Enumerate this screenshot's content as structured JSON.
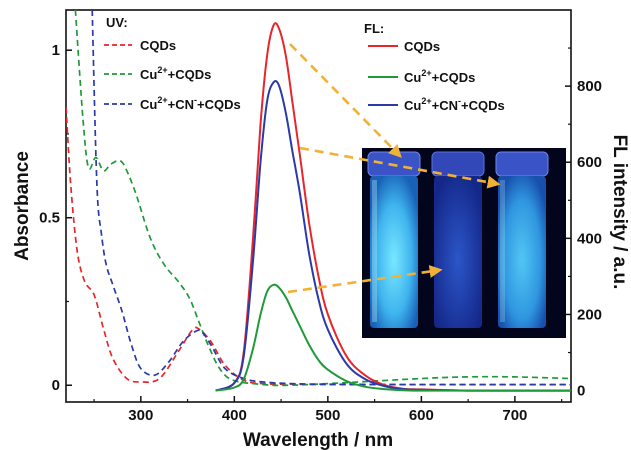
{
  "chart_data": {
    "type": "line",
    "xlabel": "Wavelength / nm",
    "ylabel_left": "Absorbance",
    "ylabel_right": "FL intensity / a.u.",
    "xlim": [
      220,
      760
    ],
    "ylim_left": [
      -0.05,
      1.12
    ],
    "ylim_right": [
      -30,
      1000
    ],
    "x_ticks": [
      300,
      400,
      500,
      600,
      700
    ],
    "y_ticks_left": [
      0,
      0.5,
      1
    ],
    "y_ticks_left_labels": [
      "0",
      "0.5",
      "1"
    ],
    "y_ticks_right": [
      0,
      200,
      400,
      600,
      800
    ],
    "colors": {
      "red": "#e8262a",
      "green": "#1f9a3a",
      "blue": "#2a3aa8"
    },
    "uv_legend": {
      "header": "UV:",
      "entries": [
        {
          "base": "CQDs",
          "sup": "",
          "mid": "",
          "sup2": "",
          "tail": "",
          "color": "red"
        },
        {
          "base": "Cu",
          "sup": "2+",
          "mid": "+CQDs",
          "sup2": "",
          "tail": "",
          "color": "green"
        },
        {
          "base": "Cu",
          "sup": "2+",
          "mid": "+CN",
          "sup2": "-",
          "tail": "+CQDs",
          "color": "blue"
        }
      ]
    },
    "fl_legend": {
      "header": "FL:",
      "entries": [
        {
          "base": "CQDs",
          "sup": "",
          "mid": "",
          "sup2": "",
          "tail": "",
          "color": "red"
        },
        {
          "base": "Cu",
          "sup": "2+",
          "mid": "+CQDs",
          "sup2": "",
          "tail": "",
          "color": "green"
        },
        {
          "base": "Cu",
          "sup": "2+",
          "mid": "+CN",
          "sup2": "-",
          "tail": "+CQDs",
          "color": "blue"
        }
      ]
    },
    "series": [
      {
        "axis": "left",
        "style": "dashed",
        "color": "red",
        "x": [
          220,
          225,
          232,
          240,
          250,
          260,
          270,
          285,
          300,
          320,
          340,
          355,
          362,
          375,
          390,
          410,
          430,
          460,
          500,
          600,
          760
        ],
        "y": [
          0.83,
          0.6,
          0.4,
          0.31,
          0.27,
          0.17,
          0.08,
          0.02,
          0.01,
          0.02,
          0.1,
          0.165,
          0.168,
          0.13,
          0.06,
          0.015,
          0.005,
          0.003,
          0.002,
          0.002,
          0.002
        ]
      },
      {
        "axis": "left",
        "style": "dashed",
        "color": "green",
        "x": [
          230,
          238,
          244,
          252,
          260,
          268,
          278,
          285,
          295,
          310,
          325,
          340,
          352,
          362,
          372,
          382,
          392,
          405,
          420,
          440,
          460,
          500,
          600,
          650,
          700,
          760
        ],
        "y": [
          1.12,
          0.8,
          0.65,
          0.68,
          0.64,
          0.66,
          0.67,
          0.64,
          0.57,
          0.44,
          0.36,
          0.31,
          0.26,
          0.19,
          0.12,
          0.06,
          0.025,
          0.01,
          0.005,
          0.0,
          0.0,
          0.005,
          0.02,
          0.025,
          0.025,
          0.02
        ]
      },
      {
        "axis": "left",
        "style": "dashed",
        "color": "blue",
        "x": [
          248,
          253,
          258,
          263,
          270,
          280,
          290,
          300,
          315,
          330,
          345,
          358,
          365,
          375,
          390,
          410,
          430,
          460,
          500,
          600,
          760
        ],
        "y": [
          1.12,
          0.6,
          0.45,
          0.36,
          0.3,
          0.22,
          0.12,
          0.05,
          0.03,
          0.07,
          0.13,
          0.16,
          0.16,
          0.12,
          0.05,
          0.02,
          0.01,
          0.005,
          0.003,
          0.002,
          0.002
        ]
      },
      {
        "axis": "right",
        "style": "solid",
        "color": "red",
        "x": [
          380,
          400,
          410,
          420,
          428,
          435,
          442,
          448,
          455,
          462,
          470,
          480,
          490,
          500,
          520,
          540,
          560,
          580,
          600,
          650,
          700,
          760
        ],
        "y": [
          0,
          20,
          100,
          400,
          700,
          880,
          960,
          950,
          880,
          760,
          620,
          440,
          300,
          200,
          90,
          40,
          15,
          5,
          3,
          0,
          0,
          0
        ]
      },
      {
        "axis": "right",
        "style": "solid",
        "color": "blue",
        "x": [
          380,
          400,
          410,
          420,
          428,
          435,
          442,
          448,
          455,
          462,
          470,
          480,
          490,
          500,
          520,
          540,
          560,
          580,
          600,
          650,
          700,
          760
        ],
        "y": [
          0,
          20,
          90,
          340,
          600,
          760,
          810,
          800,
          730,
          630,
          520,
          360,
          240,
          160,
          70,
          30,
          12,
          4,
          2,
          0,
          0,
          0
        ]
      },
      {
        "axis": "right",
        "style": "solid",
        "color": "green",
        "x": [
          380,
          400,
          410,
          420,
          428,
          435,
          442,
          448,
          455,
          462,
          470,
          480,
          490,
          500,
          520,
          540,
          560,
          580,
          600,
          650,
          700,
          760
        ],
        "y": [
          0,
          8,
          30,
          110,
          200,
          260,
          278,
          270,
          245,
          210,
          170,
          120,
          80,
          55,
          25,
          10,
          4,
          1,
          0,
          0,
          0,
          0
        ]
      }
    ]
  }
}
